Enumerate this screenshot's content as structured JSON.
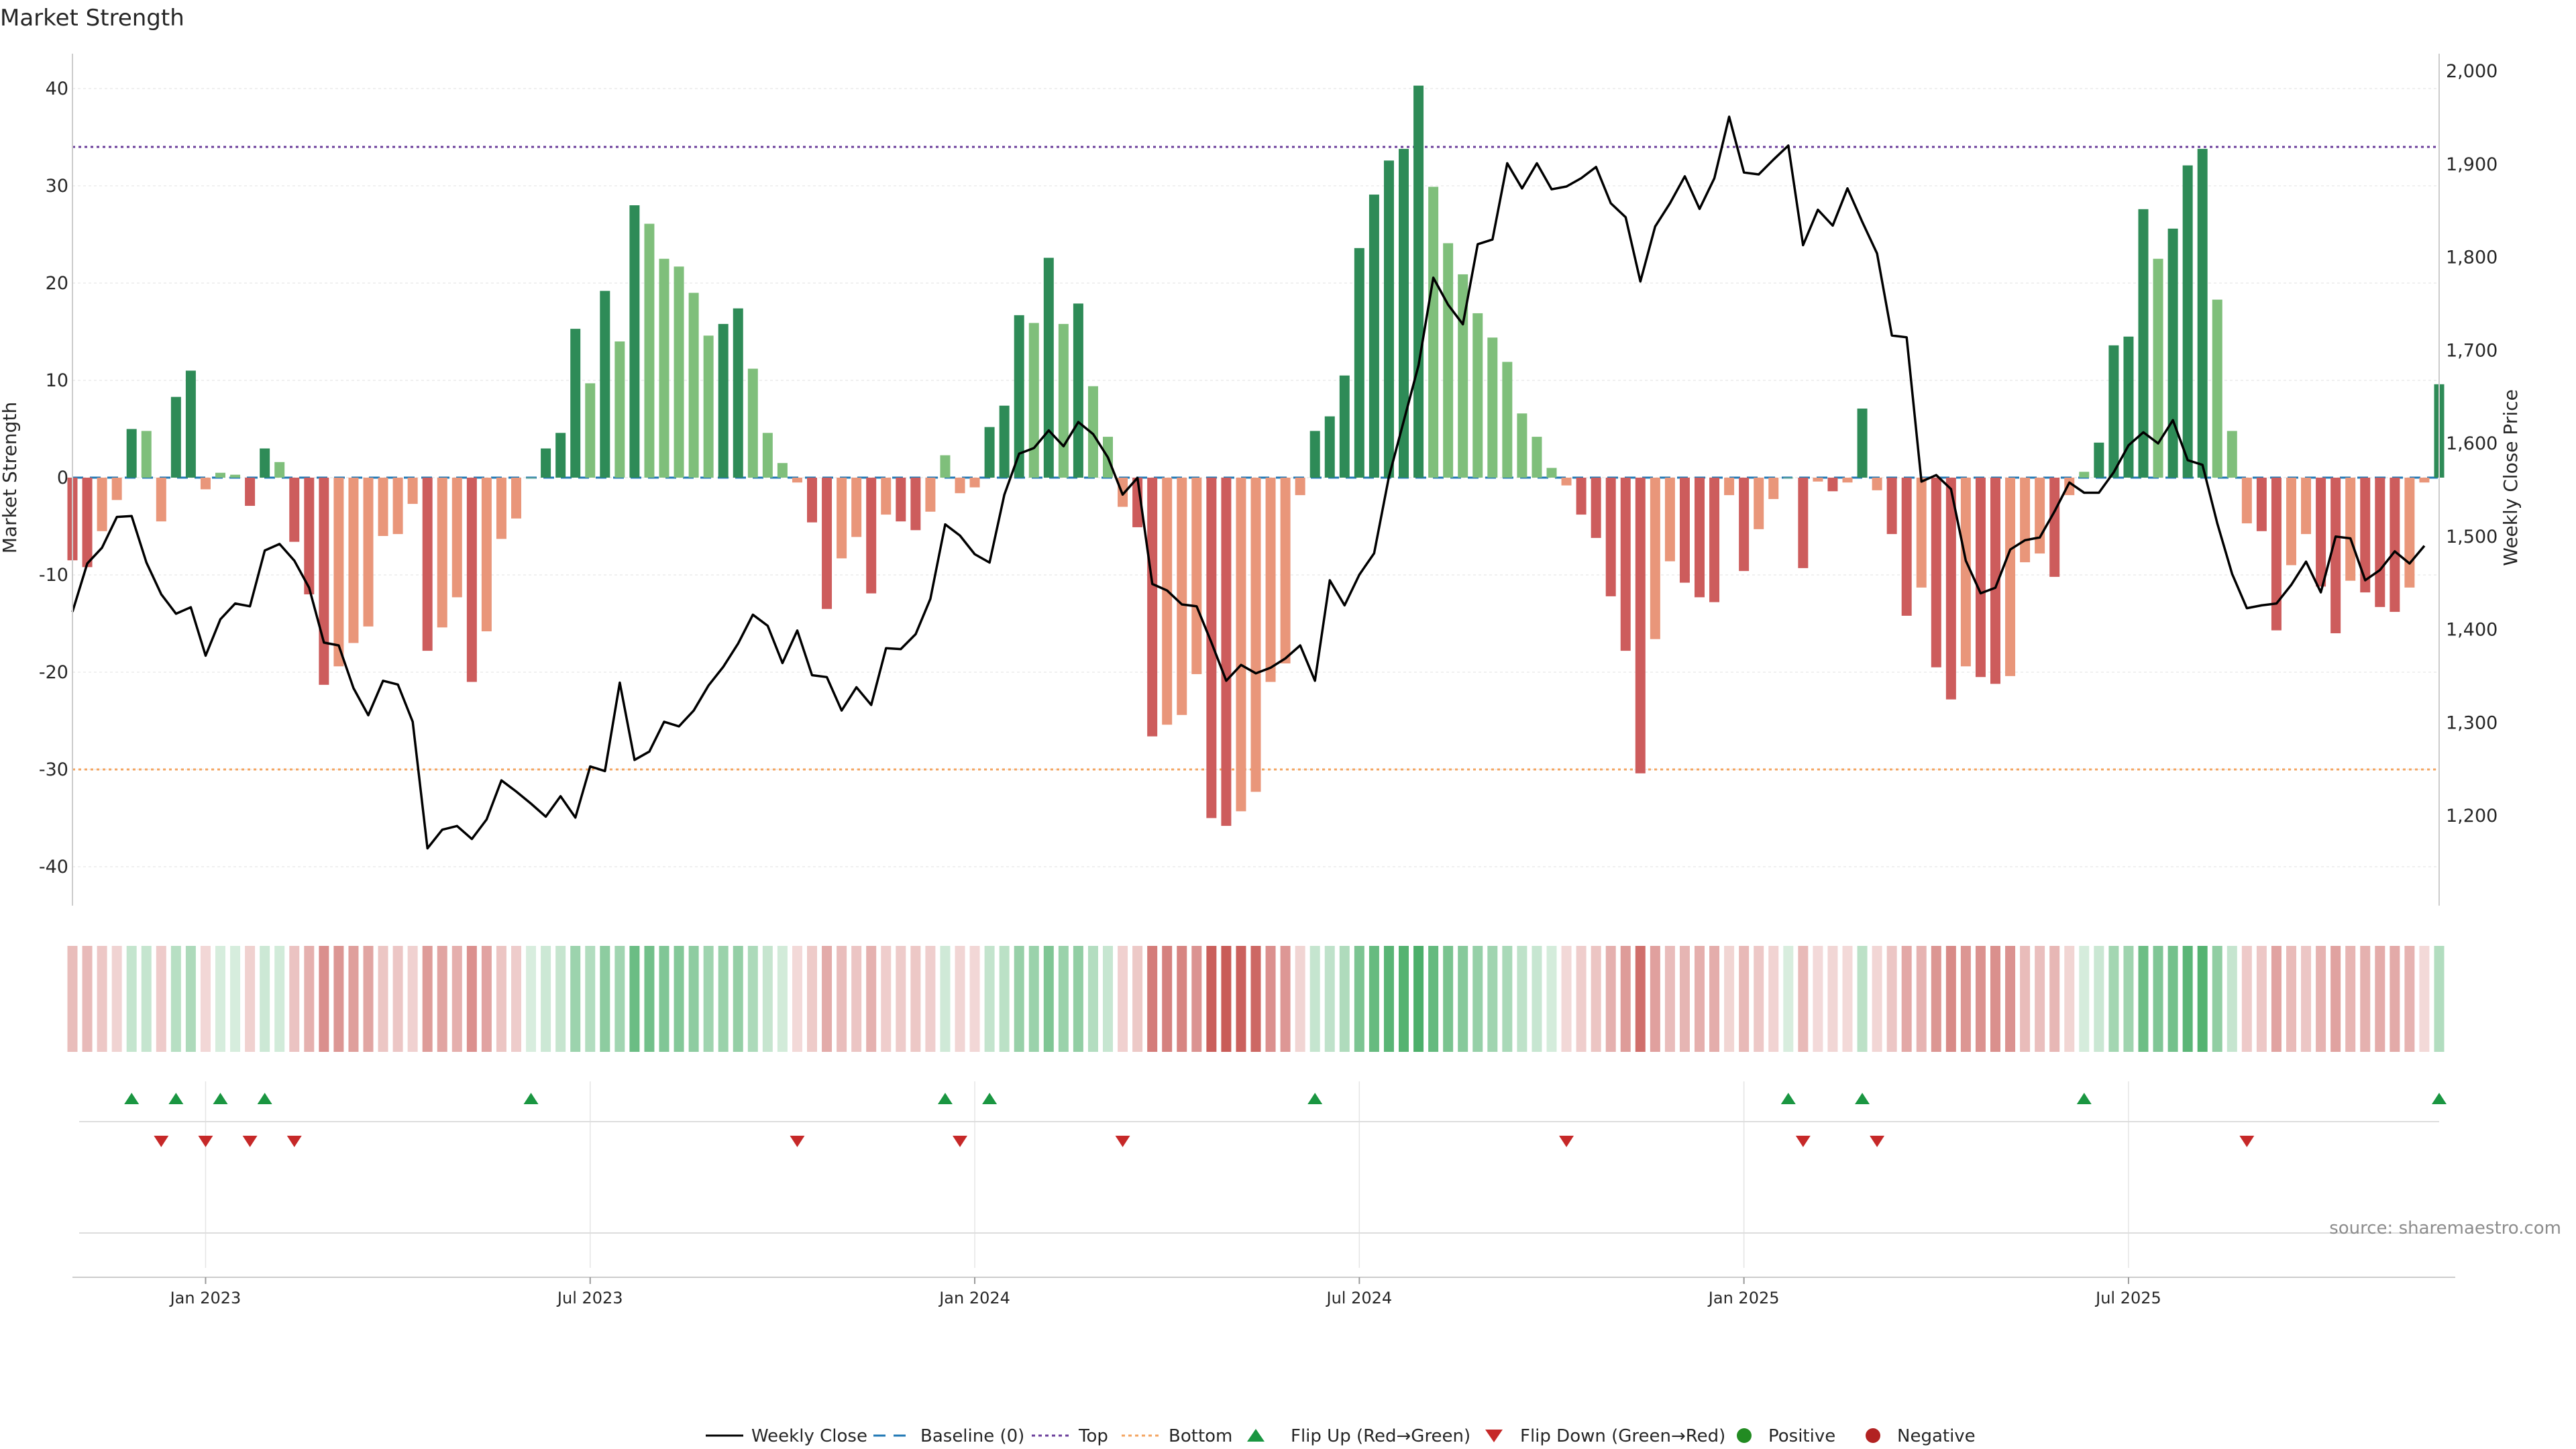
{
  "chart_data": {
    "type": "bar",
    "title": "Market Strength",
    "ylabel": "Market Strength",
    "y2label": "Weekly Close Price",
    "ylim": [
      -44,
      44
    ],
    "y2lim": [
      1140,
      2020
    ],
    "yticks": [
      -40,
      -30,
      -20,
      -10,
      0,
      10,
      20,
      30,
      40
    ],
    "y2ticks": [
      1200,
      1300,
      1400,
      1500,
      1600,
      1700,
      1800,
      1900,
      2000
    ],
    "y2tick_labels": [
      "1,200",
      "1,300",
      "1,400",
      "1,500",
      "1,600",
      "1,700",
      "1,800",
      "1,900",
      "2,000"
    ],
    "top_line": 34,
    "bottom_line": -30,
    "baseline": 0,
    "xticks": [
      {
        "label": "Jan 2023",
        "week": 9
      },
      {
        "label": "Jul 2023",
        "week": 35
      },
      {
        "label": "Jan 2024",
        "week": 61
      },
      {
        "label": "Jul 2024",
        "week": 87
      },
      {
        "label": "Jan 2025",
        "week": 113
      },
      {
        "label": "Jul 2025",
        "week": 139
      }
    ],
    "strength": [
      -8.5,
      -9.2,
      -5.5,
      -2.3,
      5,
      4.8,
      -4.5,
      8.3,
      11,
      -1.2,
      0.5,
      0.3,
      -2.9,
      3,
      1.6,
      -6.6,
      -12,
      -21.3,
      -19.4,
      -17,
      -15.3,
      -6,
      -5.8,
      -2.7,
      -17.8,
      -15.4,
      -12.3,
      -21,
      -15.8,
      -6.3,
      -4.2,
      0,
      3,
      4.6,
      15.3,
      9.7,
      19.2,
      14,
      28,
      26.1,
      22.5,
      21.7,
      19,
      14.6,
      15.8,
      17.4,
      11.2,
      4.6,
      1.5,
      -0.5,
      -4.6,
      -13.5,
      -8.3,
      -6.1,
      -11.9,
      -3.8,
      -4.5,
      -5.4,
      -3.5,
      2.3,
      -1.6,
      -1,
      5.2,
      7.4,
      16.7,
      15.9,
      22.6,
      15.8,
      17.9,
      9.4,
      4.2,
      -3,
      -5.1,
      -26.6,
      -25.4,
      -24.4,
      -20.2,
      -35,
      -35.8,
      -34.3,
      -32.3,
      -21,
      -19.1,
      -1.8,
      4.8,
      6.3,
      10.5,
      23.6,
      29.1,
      32.6,
      33.8,
      40.3,
      29.9,
      24.1,
      20.9,
      16.9,
      14.4,
      11.9,
      6.6,
      4.2,
      1,
      -0.8,
      -3.8,
      -6.2,
      -12.2,
      -17.8,
      -30.4,
      -16.6,
      -8.6,
      -10.8,
      -12.3,
      -12.8,
      -1.8,
      -9.6,
      -5.3,
      -2.2,
      0,
      -9.3,
      -0.4,
      -1.4,
      -0.5,
      7.1,
      -1.3,
      -5.8,
      -14.2,
      -11.3,
      -19.5,
      -22.8,
      -19.4,
      -20.5,
      -21.2,
      -20.4,
      -8.7,
      -7.8,
      -10.2,
      -1.8,
      0.6,
      3.6,
      13.6,
      14.5,
      27.6,
      22.5,
      25.6,
      32.1,
      33.8,
      18.3,
      4.8,
      -4.7,
      -5.5,
      -15.7,
      -9,
      -5.8,
      -11.2,
      -16,
      -10.6,
      -11.8,
      -13.3,
      -13.8,
      -11.3,
      -0.5,
      9.6
    ],
    "weekly_close": [
      1419,
      1471,
      1488,
      1521,
      1522,
      1472,
      1438,
      1417,
      1424,
      1372,
      1411,
      1428,
      1425,
      1485,
      1492,
      1474,
      1445,
      1386,
      1383,
      1337,
      1308,
      1345,
      1341,
      1301,
      1165,
      1185,
      1189,
      1175,
      1196,
      1238,
      1226,
      1213,
      1199,
      1221,
      1198,
      1253,
      1248,
      1343,
      1260,
      1269,
      1301,
      1296,
      1313,
      1340,
      1360,
      1385,
      1416,
      1404,
      1364,
      1399,
      1351,
      1349,
      1313,
      1338,
      1319,
      1380,
      1379,
      1395,
      1433,
      1513,
      1501,
      1481,
      1472,
      1545,
      1589,
      1595,
      1614,
      1597,
      1623,
      1610,
      1585,
      1545,
      1563,
      1449,
      1442,
      1427,
      1425,
      1386,
      1345,
      1362,
      1353,
      1359,
      1369,
      1383,
      1345,
      1453,
      1426,
      1459,
      1482,
      1564,
      1624,
      1684,
      1778,
      1749,
      1728,
      1814,
      1819,
      1901,
      1874,
      1901,
      1873,
      1876,
      1885,
      1897,
      1858,
      1843,
      1774,
      1833,
      1858,
      1887,
      1852,
      1885,
      1951,
      1891,
      1889,
      1905,
      1920,
      1813,
      1851,
      1834,
      1874,
      1838,
      1804,
      1716,
      1714,
      1559,
      1566,
      1551,
      1474,
      1439,
      1445,
      1486,
      1496,
      1499,
      1527,
      1558,
      1547,
      1547,
      1569,
      1598,
      1612,
      1600,
      1625,
      1582,
      1577,
      1514,
      1460,
      1423,
      1426,
      1428,
      1448,
      1473,
      1440,
      1500,
      1498,
      1453,
      1464,
      1484,
      1471,
      1490
    ]
  },
  "legend": {
    "weekly_close": "Weekly Close",
    "baseline": "Baseline (0)",
    "top": "Top",
    "bottom": "Bottom",
    "flip_up": "Flip Up (Red→Green)",
    "flip_down": "Flip Down (Green→Red)",
    "positive": "Positive",
    "negative": "Negative"
  },
  "source": "source: sharemaestro.com",
  "colors": {
    "strong_green": "#2e8b57",
    "light_green": "#7fbf7b",
    "strong_red": "#cd5c5c",
    "light_red": "#e9967a",
    "close_line": "#000000",
    "baseline": "#1f77b4",
    "top": "#6a3d9a",
    "bottom": "#f4a460",
    "flip_up": "#1a9641",
    "flip_down": "#c62828",
    "positive": "#228b22",
    "negative": "#b22222"
  }
}
